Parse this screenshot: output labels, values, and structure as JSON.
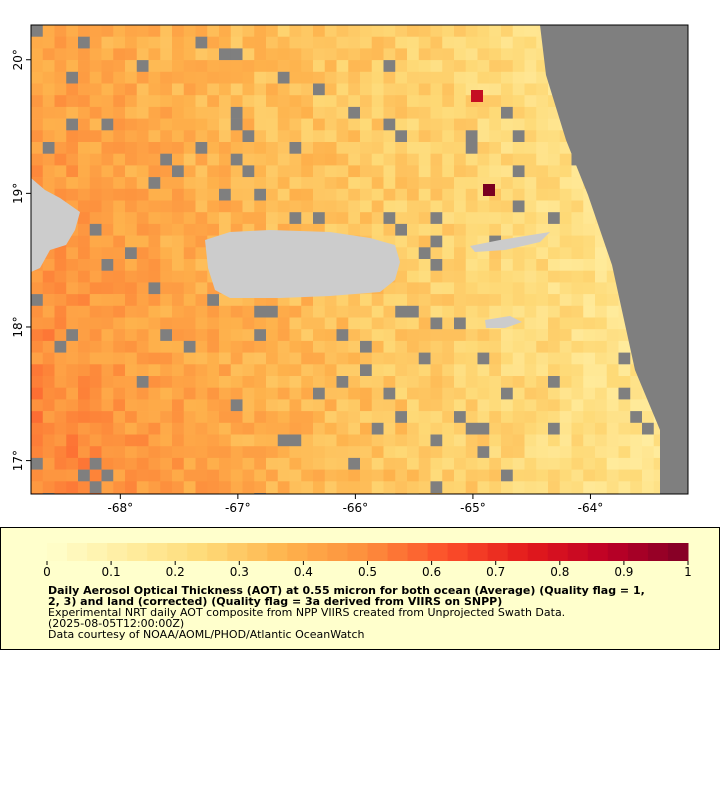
{
  "map": {
    "lonlim": [
      -68.76,
      -63.17
    ],
    "latlim": [
      16.75,
      20.26
    ],
    "lonticks": [
      {
        "value": -68,
        "label": "-68°"
      },
      {
        "value": -67,
        "label": "-67°"
      },
      {
        "value": -66,
        "label": "-66°"
      },
      {
        "value": -65,
        "label": "-65°"
      },
      {
        "value": -64,
        "label": "-64°"
      }
    ],
    "latticks": [
      {
        "value": 20,
        "label": "20°"
      },
      {
        "value": 19,
        "label": "19°"
      },
      {
        "value": 18,
        "label": "18°"
      },
      {
        "value": 17,
        "label": "17°"
      }
    ]
  },
  "colorbar": {
    "range": [
      0,
      1
    ],
    "ticks": [
      0,
      0.1,
      0.2,
      0.3,
      0.4,
      0.5,
      0.6,
      0.7,
      0.8,
      0.9,
      1
    ],
    "colors": [
      "#ffffcc",
      "#ffeda0",
      "#fed976",
      "#feb24c",
      "#fd8d3c",
      "#fc4e2a",
      "#e31a1c",
      "#bd0026",
      "#800026"
    ]
  },
  "legend": {
    "title_lines": [
      "Daily Aerosol Optical Thickness (AOT) at 0.55 micron for both ocean (Average) (Quality flag = 1,",
      "2, 3) and land (corrected) (Quality flag = 3a derived from VIIRS on SNPP)"
    ],
    "lines": [
      "Experimental NRT daily AOT composite from NPP VIIRS created from Unprojected Swath Data.",
      "(2025-08-05T12:00:00Z)",
      "Data courtesy of NOAA/AOML/PHOD/Atlantic OceanWatch"
    ]
  }
}
